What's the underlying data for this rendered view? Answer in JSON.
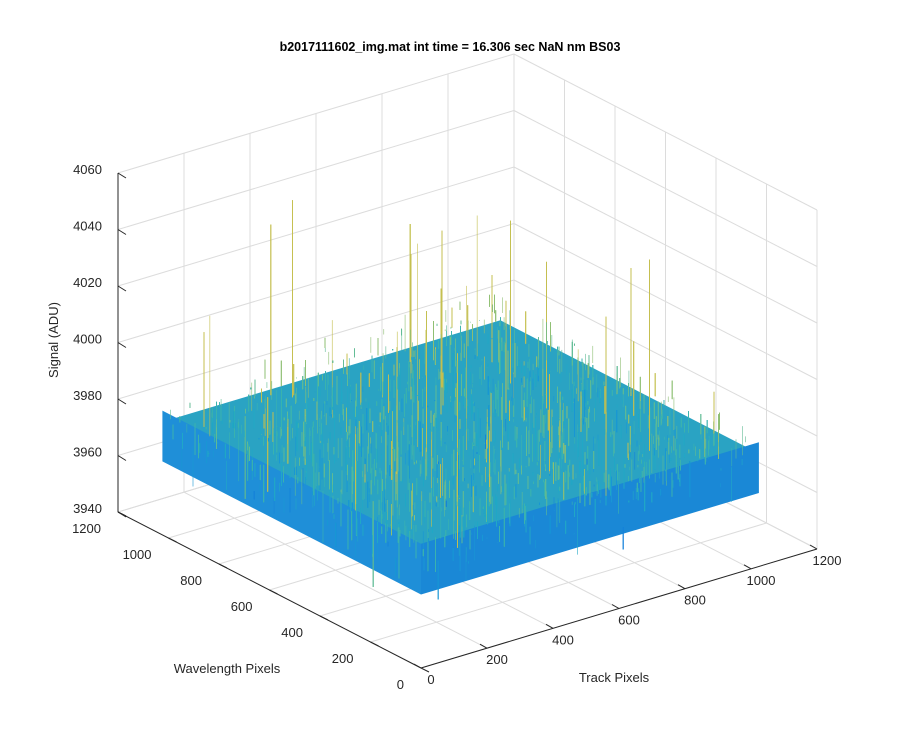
{
  "chart_data": {
    "type": "surface",
    "title": "b2017111602_img.mat int time = 16.306 sec  NaN nm BS03",
    "xlabel": "Track Pixels",
    "ylabel": "Wavelength Pixels",
    "zlabel": "Signal (ADU)",
    "xlim": [
      0,
      1200
    ],
    "ylim": [
      0,
      1200
    ],
    "zlim": [
      3940,
      4060
    ],
    "xticks": [
      "0",
      "200",
      "400",
      "600",
      "800",
      "1000",
      "1200"
    ],
    "yticks": [
      "0",
      "200",
      "400",
      "600",
      "800",
      "1000",
      "1200"
    ],
    "zticks": [
      "3940",
      "3960",
      "3980",
      "4000",
      "4020",
      "4040",
      "4060"
    ],
    "grid": true,
    "colormap": "parula",
    "surface_extent": {
      "x": [
        0,
        1024
      ],
      "y": [
        0,
        1024
      ]
    },
    "signal_mean": 3980,
    "signal_range": [
      3955,
      4050
    ]
  }
}
